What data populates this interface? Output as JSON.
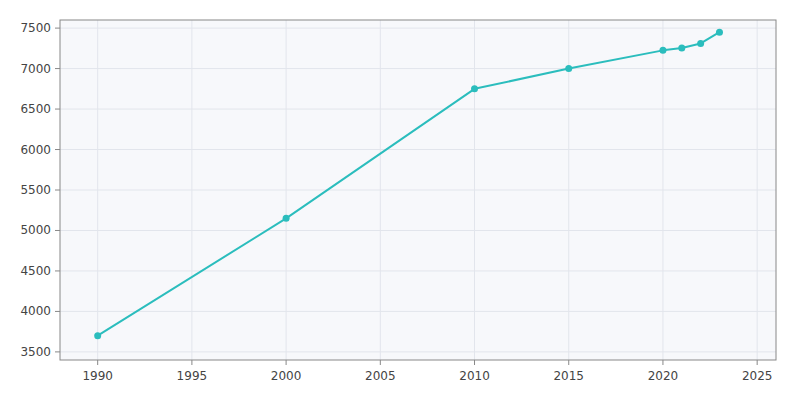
{
  "chart_data": {
    "type": "line",
    "x": [
      1990,
      2000,
      2010,
      2015,
      2020,
      2021,
      2022,
      2023
    ],
    "values": [
      3700,
      5150,
      6750,
      7000,
      7225,
      7255,
      7310,
      7450
    ],
    "color": "#2bbdbd",
    "marker": "circle",
    "xlim": [
      1988,
      2026
    ],
    "ylim": [
      3400,
      7600
    ],
    "xticks": [
      1990,
      1995,
      2000,
      2005,
      2010,
      2015,
      2020,
      2025
    ],
    "yticks": [
      3500,
      4000,
      4500,
      5000,
      5500,
      6000,
      6500,
      7000,
      7500
    ],
    "grid": true
  }
}
